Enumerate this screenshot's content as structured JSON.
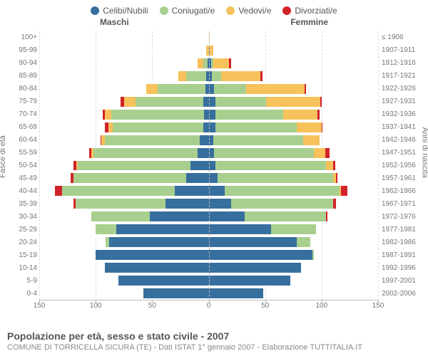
{
  "type": "population-pyramid",
  "colors": {
    "celibi": "#366f9e",
    "coniugati": "#a8cf8e",
    "vedovi": "#f7c15b",
    "divorziati": "#d2232a",
    "background": "#ffffff",
    "grid": "#dddddd",
    "axis": "#bbbbbb",
    "text": "#777777"
  },
  "legend": [
    {
      "key": "celibi",
      "label": "Celibi/Nubili"
    },
    {
      "key": "coniugati",
      "label": "Coniugati/e"
    },
    {
      "key": "vedovi",
      "label": "Vedovi/e"
    },
    {
      "key": "divorziati",
      "label": "Divorziati/e"
    }
  ],
  "gender": {
    "left": "Maschi",
    "right": "Femmine"
  },
  "axis_left_title": "Fasce di età",
  "axis_right_title": "Anni di nascita",
  "x_max": 150,
  "x_ticks": [
    150,
    100,
    50,
    0,
    50,
    100,
    150
  ],
  "age_groups": [
    {
      "age": "100+",
      "birth": "≤ 1906",
      "m": {
        "c": 0,
        "co": 0,
        "v": 0,
        "d": 0
      },
      "f": {
        "c": 0,
        "co": 0,
        "v": 1,
        "d": 0
      }
    },
    {
      "age": "95-99",
      "birth": "1907-1911",
      "m": {
        "c": 0,
        "co": 0,
        "v": 2,
        "d": 0
      },
      "f": {
        "c": 1,
        "co": 0,
        "v": 3,
        "d": 0
      }
    },
    {
      "age": "90-94",
      "birth": "1912-1916",
      "m": {
        "c": 1,
        "co": 4,
        "v": 5,
        "d": 0
      },
      "f": {
        "c": 2,
        "co": 2,
        "v": 14,
        "d": 2
      }
    },
    {
      "age": "85-89",
      "birth": "1917-1921",
      "m": {
        "c": 2,
        "co": 18,
        "v": 7,
        "d": 0
      },
      "f": {
        "c": 3,
        "co": 8,
        "v": 35,
        "d": 2
      }
    },
    {
      "age": "80-84",
      "birth": "1922-1926",
      "m": {
        "c": 3,
        "co": 42,
        "v": 10,
        "d": 0
      },
      "f": {
        "c": 5,
        "co": 28,
        "v": 52,
        "d": 1
      }
    },
    {
      "age": "75-79",
      "birth": "1927-1931",
      "m": {
        "c": 5,
        "co": 60,
        "v": 10,
        "d": 3
      },
      "f": {
        "c": 6,
        "co": 45,
        "v": 48,
        "d": 1
      }
    },
    {
      "age": "70-74",
      "birth": "1932-1936",
      "m": {
        "c": 4,
        "co": 82,
        "v": 6,
        "d": 2
      },
      "f": {
        "c": 6,
        "co": 60,
        "v": 30,
        "d": 2
      }
    },
    {
      "age": "65-69",
      "birth": "1937-1941",
      "m": {
        "c": 5,
        "co": 80,
        "v": 4,
        "d": 3
      },
      "f": {
        "c": 6,
        "co": 72,
        "v": 22,
        "d": 1
      }
    },
    {
      "age": "60-64",
      "birth": "1942-1946",
      "m": {
        "c": 8,
        "co": 84,
        "v": 3,
        "d": 1
      },
      "f": {
        "c": 4,
        "co": 80,
        "v": 14,
        "d": 0
      }
    },
    {
      "age": "55-59",
      "birth": "1947-1951",
      "m": {
        "c": 10,
        "co": 92,
        "v": 2,
        "d": 2
      },
      "f": {
        "c": 5,
        "co": 88,
        "v": 10,
        "d": 4
      }
    },
    {
      "age": "50-54",
      "birth": "1952-1956",
      "m": {
        "c": 16,
        "co": 100,
        "v": 1,
        "d": 3
      },
      "f": {
        "c": 6,
        "co": 98,
        "v": 6,
        "d": 2
      }
    },
    {
      "age": "45-49",
      "birth": "1957-1961",
      "m": {
        "c": 20,
        "co": 100,
        "v": 0,
        "d": 2
      },
      "f": {
        "c": 8,
        "co": 102,
        "v": 3,
        "d": 1
      }
    },
    {
      "age": "40-44",
      "birth": "1962-1966",
      "m": {
        "c": 30,
        "co": 100,
        "v": 0,
        "d": 6
      },
      "f": {
        "c": 14,
        "co": 102,
        "v": 1,
        "d": 6
      }
    },
    {
      "age": "35-39",
      "birth": "1967-1971",
      "m": {
        "c": 38,
        "co": 80,
        "v": 0,
        "d": 2
      },
      "f": {
        "c": 20,
        "co": 90,
        "v": 0,
        "d": 3
      }
    },
    {
      "age": "30-34",
      "birth": "1972-1976",
      "m": {
        "c": 52,
        "co": 52,
        "v": 0,
        "d": 0
      },
      "f": {
        "c": 32,
        "co": 72,
        "v": 0,
        "d": 1
      }
    },
    {
      "age": "25-29",
      "birth": "1977-1981",
      "m": {
        "c": 82,
        "co": 18,
        "v": 0,
        "d": 0
      },
      "f": {
        "c": 55,
        "co": 40,
        "v": 0,
        "d": 0
      }
    },
    {
      "age": "20-24",
      "birth": "1982-1986",
      "m": {
        "c": 88,
        "co": 3,
        "v": 0,
        "d": 0
      },
      "f": {
        "c": 78,
        "co": 12,
        "v": 0,
        "d": 0
      }
    },
    {
      "age": "15-19",
      "birth": "1987-1991",
      "m": {
        "c": 100,
        "co": 0,
        "v": 0,
        "d": 0
      },
      "f": {
        "c": 92,
        "co": 1,
        "v": 0,
        "d": 0
      }
    },
    {
      "age": "10-14",
      "birth": "1992-1996",
      "m": {
        "c": 92,
        "co": 0,
        "v": 0,
        "d": 0
      },
      "f": {
        "c": 82,
        "co": 0,
        "v": 0,
        "d": 0
      }
    },
    {
      "age": "5-9",
      "birth": "1997-2001",
      "m": {
        "c": 80,
        "co": 0,
        "v": 0,
        "d": 0
      },
      "f": {
        "c": 72,
        "co": 0,
        "v": 0,
        "d": 0
      }
    },
    {
      "age": "0-4",
      "birth": "2002-2006",
      "m": {
        "c": 58,
        "co": 0,
        "v": 0,
        "d": 0
      },
      "f": {
        "c": 48,
        "co": 0,
        "v": 0,
        "d": 0
      }
    }
  ],
  "footer": {
    "title": "Popolazione per età, sesso e stato civile - 2007",
    "subtitle": "COMUNE DI TORRICELLA SICURA (TE) - Dati ISTAT 1° gennaio 2007 - Elaborazione TUTTITALIA.IT"
  }
}
